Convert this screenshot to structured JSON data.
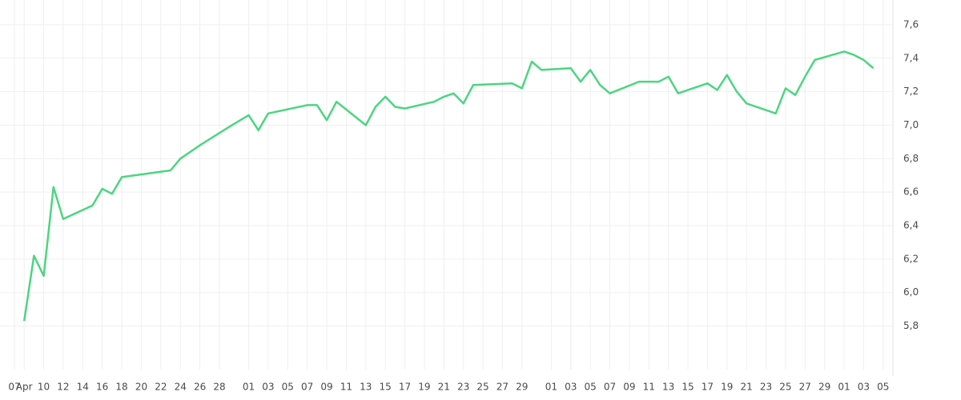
{
  "chart_data": {
    "type": "line",
    "x": [
      1,
      2,
      3,
      4,
      5,
      8,
      9,
      10,
      11,
      16,
      17,
      19,
      22,
      24,
      25,
      26,
      30,
      31,
      32,
      33,
      36,
      37,
      38,
      39,
      40,
      43,
      44,
      45,
      46,
      47,
      51,
      52,
      53,
      54,
      57,
      58,
      59,
      60,
      61,
      64,
      65,
      66,
      67,
      68,
      71,
      72,
      73,
      74,
      75,
      78,
      79,
      80,
      81,
      82,
      85,
      86,
      87,
      88
    ],
    "series": [
      {
        "color": "#4cd580",
        "values": [
          5.83,
          6.22,
          6.1,
          6.63,
          6.44,
          6.52,
          6.62,
          6.59,
          6.69,
          6.73,
          6.8,
          6.88,
          6.99,
          7.06,
          6.97,
          7.07,
          7.12,
          7.12,
          7.03,
          7.14,
          7.0,
          7.11,
          7.17,
          7.11,
          7.1,
          7.14,
          7.17,
          7.19,
          7.13,
          7.24,
          7.25,
          7.22,
          7.38,
          7.33,
          7.34,
          7.26,
          7.33,
          7.24,
          7.19,
          7.26,
          7.26,
          7.26,
          7.29,
          7.19,
          7.25,
          7.21,
          7.3,
          7.2,
          7.13,
          7.07,
          7.22,
          7.18,
          7.29,
          7.39,
          7.44,
          7.42,
          7.39,
          7.34
        ]
      }
    ],
    "xlim": [
      0,
      90
    ],
    "xticks": [
      {
        "value": 0,
        "label": "07"
      },
      {
        "value": 1,
        "label": "Apr"
      },
      {
        "value": 3,
        "label": "10"
      },
      {
        "value": 5,
        "label": "12"
      },
      {
        "value": 7,
        "label": "14"
      },
      {
        "value": 9,
        "label": "16"
      },
      {
        "value": 11,
        "label": "18"
      },
      {
        "value": 13,
        "label": "20"
      },
      {
        "value": 15,
        "label": "22"
      },
      {
        "value": 17,
        "label": "24"
      },
      {
        "value": 19,
        "label": "26"
      },
      {
        "value": 21,
        "label": "28"
      },
      {
        "value": 24,
        "label": "01"
      },
      {
        "value": 26,
        "label": "03"
      },
      {
        "value": 28,
        "label": "05"
      },
      {
        "value": 30,
        "label": "07"
      },
      {
        "value": 32,
        "label": "09"
      },
      {
        "value": 34,
        "label": "11"
      },
      {
        "value": 36,
        "label": "13"
      },
      {
        "value": 38,
        "label": "15"
      },
      {
        "value": 40,
        "label": "17"
      },
      {
        "value": 42,
        "label": "19"
      },
      {
        "value": 44,
        "label": "21"
      },
      {
        "value": 46,
        "label": "23"
      },
      {
        "value": 48,
        "label": "25"
      },
      {
        "value": 50,
        "label": "27"
      },
      {
        "value": 52,
        "label": "29"
      },
      {
        "value": 55,
        "label": "01"
      },
      {
        "value": 57,
        "label": "03"
      },
      {
        "value": 59,
        "label": "05"
      },
      {
        "value": 61,
        "label": "07"
      },
      {
        "value": 63,
        "label": "09"
      },
      {
        "value": 65,
        "label": "11"
      },
      {
        "value": 67,
        "label": "13"
      },
      {
        "value": 69,
        "label": "15"
      },
      {
        "value": 71,
        "label": "17"
      },
      {
        "value": 73,
        "label": "19"
      },
      {
        "value": 75,
        "label": "21"
      },
      {
        "value": 77,
        "label": "23"
      },
      {
        "value": 79,
        "label": "25"
      },
      {
        "value": 81,
        "label": "27"
      },
      {
        "value": 83,
        "label": "29"
      },
      {
        "value": 85,
        "label": "01"
      },
      {
        "value": 87,
        "label": "03"
      },
      {
        "value": 89,
        "label": "05"
      }
    ],
    "ylim": [
      5.54,
      7.7
    ],
    "yticks": [
      {
        "value": 5.8,
        "label": "5,8"
      },
      {
        "value": 6.0,
        "label": "6,0"
      },
      {
        "value": 6.2,
        "label": "6,2"
      },
      {
        "value": 6.4,
        "label": "6,4"
      },
      {
        "value": 6.6,
        "label": "6,6"
      },
      {
        "value": 6.8,
        "label": "6,8"
      },
      {
        "value": 7.0,
        "label": "7,0"
      },
      {
        "value": 7.2,
        "label": "7,2"
      },
      {
        "value": 7.4,
        "label": "7,4"
      },
      {
        "value": 7.6,
        "label": "7,6"
      }
    ],
    "grid": true
  }
}
